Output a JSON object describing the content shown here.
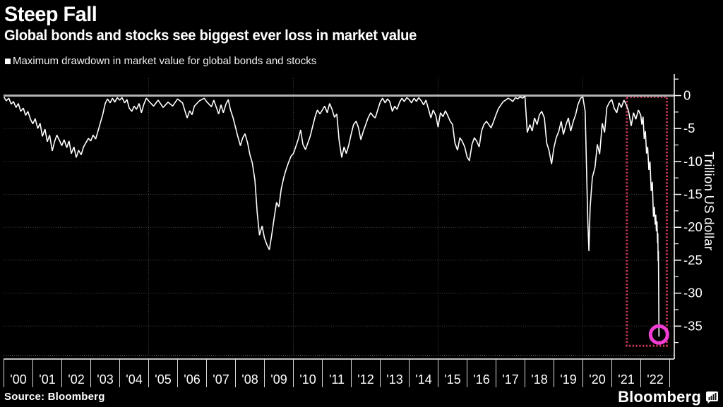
{
  "header": {
    "title": "Steep Fall",
    "subtitle": "Global bonds and stocks see biggest ever loss in market value"
  },
  "legend": {
    "label": "Maximum drawdown in market value for global bonds and stocks",
    "marker_color": "#ffffff"
  },
  "footer": {
    "source": "Source: Bloomberg",
    "logo_text": "Bloomberg"
  },
  "colors": {
    "background": "#000000",
    "line": "#ffffff",
    "zero_line": "#b3b3b3",
    "gridline": "#4a4a4a",
    "axis": "#ffffff",
    "highlight_box": "#c8395a",
    "highlight_circle": "#f23dd4"
  },
  "chart_data": {
    "type": "line",
    "title": "Steep Fall",
    "subtitle": "Global bonds and stocks see biggest ever loss in market value",
    "series_name": "Maximum drawdown in market value for global bonds and stocks",
    "xlabel": "",
    "ylabel": "Trillion US dollar",
    "xlim": [
      2000,
      2023
    ],
    "ylim": [
      -40,
      2.5
    ],
    "grid": "dotted; horizontal every 5 trillion, vertical every 5 years",
    "legend_position": "top-left",
    "y_tick_values": [
      0,
      -5,
      -10,
      -15,
      -20,
      -25,
      -30,
      -35
    ],
    "y_tick_labels": [
      "0",
      "-5",
      "-10",
      "-15",
      "-20",
      "-25",
      "-30",
      "-35"
    ],
    "y_minor_tick_step": 2.5,
    "x_tick_years": [
      2000,
      2001,
      2002,
      2003,
      2004,
      2005,
      2006,
      2007,
      2008,
      2009,
      2010,
      2011,
      2012,
      2013,
      2014,
      2015,
      2016,
      2017,
      2018,
      2019,
      2020,
      2021,
      2022,
      2023
    ],
    "x_tick_labels": [
      "'00",
      "'01",
      "'02",
      "'03",
      "'04",
      "'05",
      "'06",
      "'07",
      "'08",
      "'09",
      "'10",
      "'11",
      "'12",
      "'13",
      "'14",
      "'15",
      "'16",
      "'17",
      "'18",
      "'19",
      "'20",
      "'21",
      "'22"
    ],
    "v_gridline_years": [
      2005,
      2010,
      2015,
      2020
    ],
    "annotations": {
      "highlight_box": {
        "x_range": [
          2021.52,
          2022.9
        ],
        "y_range": [
          -0.2,
          -38.0
        ],
        "style": "dotted",
        "color": "#c8395a"
      },
      "highlight_circle": {
        "x": 2022.63,
        "y": -36.6,
        "color": "#f23dd4",
        "note": "record drawdown at end of series"
      }
    },
    "points": [
      [
        2000.0,
        -0.2
      ],
      [
        2000.08,
        -0.8
      ],
      [
        2000.17,
        -0.4
      ],
      [
        2000.25,
        -1.3
      ],
      [
        2000.33,
        -0.9
      ],
      [
        2000.42,
        -1.8
      ],
      [
        2000.5,
        -1.2
      ],
      [
        2000.58,
        -2.4
      ],
      [
        2000.67,
        -1.9
      ],
      [
        2000.75,
        -3.0
      ],
      [
        2000.83,
        -2.4
      ],
      [
        2000.92,
        -3.6
      ],
      [
        2001.0,
        -4.3
      ],
      [
        2001.08,
        -3.5
      ],
      [
        2001.17,
        -5.0
      ],
      [
        2001.25,
        -4.2
      ],
      [
        2001.33,
        -6.2
      ],
      [
        2001.42,
        -5.1
      ],
      [
        2001.5,
        -7.0
      ],
      [
        2001.58,
        -6.0
      ],
      [
        2001.67,
        -8.4
      ],
      [
        2001.75,
        -7.0
      ],
      [
        2001.83,
        -6.0
      ],
      [
        2001.92,
        -6.8
      ],
      [
        2002.0,
        -7.6
      ],
      [
        2002.08,
        -6.7
      ],
      [
        2002.17,
        -7.9
      ],
      [
        2002.25,
        -6.9
      ],
      [
        2002.33,
        -8.8
      ],
      [
        2002.42,
        -7.8
      ],
      [
        2002.5,
        -9.4
      ],
      [
        2002.58,
        -8.3
      ],
      [
        2002.67,
        -9.0
      ],
      [
        2002.75,
        -7.8
      ],
      [
        2002.83,
        -7.2
      ],
      [
        2002.92,
        -6.5
      ],
      [
        2003.0,
        -6.9
      ],
      [
        2003.08,
        -6.0
      ],
      [
        2003.17,
        -6.6
      ],
      [
        2003.25,
        -5.4
      ],
      [
        2003.33,
        -4.2
      ],
      [
        2003.42,
        -2.8
      ],
      [
        2003.5,
        -1.2
      ],
      [
        2003.58,
        -0.5
      ],
      [
        2003.67,
        -1.1
      ],
      [
        2003.75,
        -0.4
      ],
      [
        2003.83,
        -1.0
      ],
      [
        2003.92,
        -0.3
      ],
      [
        2004.0,
        -0.7
      ],
      [
        2004.08,
        -0.3
      ],
      [
        2004.17,
        -1.1
      ],
      [
        2004.25,
        -0.6
      ],
      [
        2004.33,
        -1.9
      ],
      [
        2004.42,
        -2.4
      ],
      [
        2004.5,
        -1.6
      ],
      [
        2004.58,
        -2.1
      ],
      [
        2004.67,
        -1.2
      ],
      [
        2004.75,
        -2.6
      ],
      [
        2004.83,
        -1.4
      ],
      [
        2004.92,
        -0.4
      ],
      [
        2005.0,
        -0.8
      ],
      [
        2005.17,
        -1.6
      ],
      [
        2005.33,
        -0.7
      ],
      [
        2005.5,
        -1.8
      ],
      [
        2005.67,
        -1.0
      ],
      [
        2005.83,
        -1.6
      ],
      [
        2006.0,
        -0.5
      ],
      [
        2006.17,
        -1.1
      ],
      [
        2006.33,
        -3.4
      ],
      [
        2006.42,
        -2.3
      ],
      [
        2006.5,
        -2.9
      ],
      [
        2006.58,
        -1.6
      ],
      [
        2006.75,
        -0.8
      ],
      [
        2006.92,
        -0.4
      ],
      [
        2007.0,
        -0.9
      ],
      [
        2007.17,
        -1.7
      ],
      [
        2007.25,
        -0.7
      ],
      [
        2007.42,
        -2.8
      ],
      [
        2007.5,
        -1.4
      ],
      [
        2007.58,
        -2.6
      ],
      [
        2007.67,
        -1.3
      ],
      [
        2007.75,
        -0.6
      ],
      [
        2007.83,
        -2.2
      ],
      [
        2007.92,
        -3.4
      ],
      [
        2008.0,
        -4.8
      ],
      [
        2008.08,
        -6.2
      ],
      [
        2008.17,
        -7.6
      ],
      [
        2008.25,
        -6.4
      ],
      [
        2008.33,
        -5.8
      ],
      [
        2008.42,
        -7.2
      ],
      [
        2008.5,
        -9.0
      ],
      [
        2008.58,
        -10.2
      ],
      [
        2008.67,
        -12.8
      ],
      [
        2008.75,
        -17.8
      ],
      [
        2008.83,
        -21.2
      ],
      [
        2008.92,
        -19.8
      ],
      [
        2009.0,
        -21.6
      ],
      [
        2009.08,
        -22.6
      ],
      [
        2009.17,
        -23.4
      ],
      [
        2009.25,
        -21.2
      ],
      [
        2009.33,
        -18.8
      ],
      [
        2009.42,
        -16.2
      ],
      [
        2009.5,
        -16.9
      ],
      [
        2009.58,
        -14.2
      ],
      [
        2009.67,
        -12.4
      ],
      [
        2009.75,
        -11.2
      ],
      [
        2009.83,
        -10.2
      ],
      [
        2009.92,
        -9.2
      ],
      [
        2010.0,
        -8.8
      ],
      [
        2010.08,
        -7.8
      ],
      [
        2010.17,
        -6.6
      ],
      [
        2010.25,
        -5.2
      ],
      [
        2010.33,
        -7.4
      ],
      [
        2010.42,
        -8.2
      ],
      [
        2010.5,
        -7.2
      ],
      [
        2010.58,
        -6.2
      ],
      [
        2010.67,
        -4.6
      ],
      [
        2010.75,
        -3.2
      ],
      [
        2010.83,
        -2.2
      ],
      [
        2010.92,
        -2.8
      ],
      [
        2011.0,
        -2.2
      ],
      [
        2011.08,
        -1.6
      ],
      [
        2011.17,
        -2.6
      ],
      [
        2011.25,
        -1.2
      ],
      [
        2011.33,
        -2.0
      ],
      [
        2011.42,
        -3.3
      ],
      [
        2011.5,
        -2.8
      ],
      [
        2011.58,
        -6.8
      ],
      [
        2011.67,
        -9.4
      ],
      [
        2011.75,
        -7.8
      ],
      [
        2011.83,
        -8.8
      ],
      [
        2011.92,
        -7.4
      ],
      [
        2012.0,
        -5.8
      ],
      [
        2012.08,
        -4.4
      ],
      [
        2012.17,
        -3.9
      ],
      [
        2012.25,
        -4.9
      ],
      [
        2012.33,
        -6.7
      ],
      [
        2012.42,
        -5.4
      ],
      [
        2012.5,
        -4.4
      ],
      [
        2012.58,
        -3.4
      ],
      [
        2012.67,
        -2.6
      ],
      [
        2012.75,
        -3.1
      ],
      [
        2012.83,
        -3.4
      ],
      [
        2012.92,
        -2.1
      ],
      [
        2013.0,
        -1.0
      ],
      [
        2013.08,
        -0.4
      ],
      [
        2013.17,
        -1.1
      ],
      [
        2013.25,
        -0.5
      ],
      [
        2013.33,
        -0.9
      ],
      [
        2013.42,
        -2.4
      ],
      [
        2013.5,
        -1.6
      ],
      [
        2013.58,
        -2.1
      ],
      [
        2013.67,
        -1.0
      ],
      [
        2013.75,
        -0.4
      ],
      [
        2013.83,
        -0.9
      ],
      [
        2013.92,
        -0.3
      ],
      [
        2014.0,
        -0.6
      ],
      [
        2014.08,
        -1.1
      ],
      [
        2014.17,
        -0.4
      ],
      [
        2014.25,
        -0.9
      ],
      [
        2014.33,
        -0.3
      ],
      [
        2014.42,
        -0.8
      ],
      [
        2014.5,
        -1.4
      ],
      [
        2014.58,
        -0.7
      ],
      [
        2014.67,
        -2.1
      ],
      [
        2014.75,
        -3.4
      ],
      [
        2014.83,
        -2.2
      ],
      [
        2014.92,
        -3.0
      ],
      [
        2015.0,
        -4.8
      ],
      [
        2015.08,
        -2.6
      ],
      [
        2015.17,
        -3.2
      ],
      [
        2015.25,
        -2.3
      ],
      [
        2015.33,
        -3.0
      ],
      [
        2015.42,
        -3.9
      ],
      [
        2015.5,
        -4.4
      ],
      [
        2015.58,
        -7.2
      ],
      [
        2015.67,
        -8.3
      ],
      [
        2015.75,
        -6.4
      ],
      [
        2015.83,
        -6.9
      ],
      [
        2015.92,
        -7.8
      ],
      [
        2016.0,
        -9.3
      ],
      [
        2016.08,
        -9.9
      ],
      [
        2016.17,
        -7.4
      ],
      [
        2016.25,
        -6.4
      ],
      [
        2016.33,
        -6.9
      ],
      [
        2016.42,
        -7.8
      ],
      [
        2016.5,
        -5.4
      ],
      [
        2016.58,
        -4.4
      ],
      [
        2016.67,
        -3.9
      ],
      [
        2016.75,
        -4.4
      ],
      [
        2016.83,
        -4.9
      ],
      [
        2016.92,
        -3.9
      ],
      [
        2017.0,
        -2.9
      ],
      [
        2017.08,
        -2.0
      ],
      [
        2017.17,
        -1.4
      ],
      [
        2017.25,
        -0.9
      ],
      [
        2017.33,
        -0.7
      ],
      [
        2017.42,
        -0.4
      ],
      [
        2017.5,
        -0.6
      ],
      [
        2017.58,
        -0.9
      ],
      [
        2017.67,
        -0.3
      ],
      [
        2017.75,
        -0.5
      ],
      [
        2017.83,
        -0.2
      ],
      [
        2017.92,
        -0.4
      ],
      [
        2018.0,
        -0.1
      ],
      [
        2018.08,
        -5.6
      ],
      [
        2018.17,
        -4.4
      ],
      [
        2018.25,
        -5.4
      ],
      [
        2018.33,
        -3.4
      ],
      [
        2018.42,
        -4.4
      ],
      [
        2018.5,
        -2.9
      ],
      [
        2018.58,
        -2.4
      ],
      [
        2018.67,
        -3.4
      ],
      [
        2018.75,
        -7.2
      ],
      [
        2018.83,
        -8.3
      ],
      [
        2018.92,
        -10.4
      ],
      [
        2019.0,
        -7.9
      ],
      [
        2019.08,
        -6.4
      ],
      [
        2019.17,
        -5.4
      ],
      [
        2019.25,
        -3.9
      ],
      [
        2019.33,
        -5.9
      ],
      [
        2019.42,
        -4.4
      ],
      [
        2019.5,
        -3.4
      ],
      [
        2019.58,
        -5.4
      ],
      [
        2019.67,
        -3.9
      ],
      [
        2019.75,
        -2.9
      ],
      [
        2019.83,
        -1.4
      ],
      [
        2019.92,
        -0.4
      ],
      [
        2020.0,
        -0.2
      ],
      [
        2020.08,
        -2.4
      ],
      [
        2020.17,
        -19.0
      ],
      [
        2020.21,
        -23.6
      ],
      [
        2020.25,
        -17.0
      ],
      [
        2020.33,
        -12.4
      ],
      [
        2020.42,
        -10.9
      ],
      [
        2020.5,
        -7.4
      ],
      [
        2020.58,
        -8.9
      ],
      [
        2020.67,
        -4.2
      ],
      [
        2020.75,
        -5.6
      ],
      [
        2020.83,
        -1.8
      ],
      [
        2020.92,
        -1.0
      ],
      [
        2021.0,
        -0.6
      ],
      [
        2021.08,
        -1.9
      ],
      [
        2021.17,
        -2.6
      ],
      [
        2021.25,
        -1.1
      ],
      [
        2021.33,
        -1.8
      ],
      [
        2021.42,
        -0.7
      ],
      [
        2021.5,
        -1.4
      ],
      [
        2021.58,
        -2.4
      ],
      [
        2021.67,
        -4.6
      ],
      [
        2021.75,
        -2.6
      ],
      [
        2021.83,
        -3.6
      ],
      [
        2021.92,
        -2.2
      ],
      [
        2022.0,
        -3.0
      ],
      [
        2022.04,
        -4.4
      ],
      [
        2022.08,
        -3.2
      ],
      [
        2022.12,
        -6.6
      ],
      [
        2022.16,
        -5.4
      ],
      [
        2022.2,
        -8.8
      ],
      [
        2022.24,
        -7.8
      ],
      [
        2022.28,
        -11.3
      ],
      [
        2022.32,
        -10.0
      ],
      [
        2022.36,
        -14.5
      ],
      [
        2022.4,
        -13.1
      ],
      [
        2022.44,
        -18.4
      ],
      [
        2022.47,
        -16.9
      ],
      [
        2022.5,
        -19.6
      ],
      [
        2022.52,
        -18.1
      ],
      [
        2022.54,
        -20.6
      ],
      [
        2022.56,
        -19.1
      ],
      [
        2022.58,
        -22.4
      ],
      [
        2022.59,
        -20.9
      ],
      [
        2022.6,
        -25.1
      ],
      [
        2022.61,
        -23.6
      ],
      [
        2022.62,
        -29.2
      ],
      [
        2022.63,
        -36.6
      ]
    ]
  }
}
